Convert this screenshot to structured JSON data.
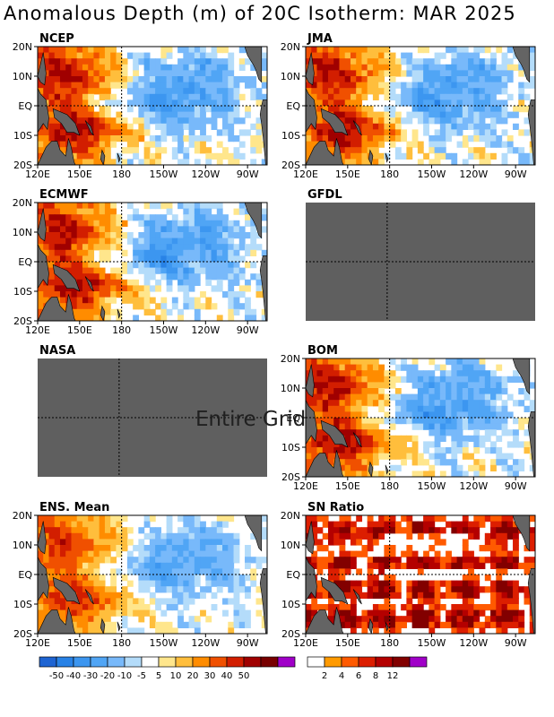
{
  "title": "Anomalous Depth (m) of 20C Isotherm: MAR 2025",
  "colors": {
    "land": "#646464",
    "missing": "#5f5f5f",
    "frame": "#000000",
    "grid": "#000000"
  },
  "chart_data": [
    {
      "type": "heatmap",
      "name": "NCEP",
      "status": "available",
      "xlabel_ticks": [
        "120E",
        "150E",
        "180",
        "150W",
        "120W",
        "90W"
      ],
      "ylabel_ticks": [
        "20N",
        "10N",
        "EQ",
        "10S",
        "20S"
      ],
      "pattern": "warm-west-cool-east"
    },
    {
      "type": "heatmap",
      "name": "JMA",
      "status": "available",
      "xlabel_ticks": [
        "120E",
        "150E",
        "180",
        "150W",
        "120W",
        "90W"
      ],
      "ylabel_ticks": [
        "20N",
        "10N",
        "EQ",
        "10S",
        "20S"
      ],
      "pattern": "warm-west-cool-east"
    },
    {
      "type": "heatmap",
      "name": "ECMWF",
      "status": "available",
      "xlabel_ticks": [
        "120E",
        "150E",
        "180",
        "150W",
        "120W",
        "90W"
      ],
      "ylabel_ticks": [
        "20N",
        "10N",
        "EQ",
        "10S",
        "20S"
      ],
      "pattern": "warm-west-cool-east"
    },
    {
      "type": "heatmap",
      "name": "GFDL",
      "status": "missing",
      "xlabel_ticks": [],
      "ylabel_ticks": []
    },
    {
      "type": "heatmap",
      "name": "NASA",
      "status": "missing",
      "message": "Entire Grid Undefined",
      "xlabel_ticks": [],
      "ylabel_ticks": []
    },
    {
      "type": "heatmap",
      "name": "BOM",
      "status": "available",
      "xlabel_ticks": [
        "120E",
        "150E",
        "180",
        "150W",
        "120W",
        "90W"
      ],
      "ylabel_ticks": [
        "20N",
        "10N",
        "EQ",
        "10S",
        "20S"
      ],
      "pattern": "warm-west-cool-east"
    },
    {
      "type": "heatmap",
      "name": "ENS. Mean",
      "status": "available",
      "xlabel_ticks": [
        "120E",
        "150E",
        "180",
        "150W",
        "120W",
        "90W"
      ],
      "ylabel_ticks": [
        "20N",
        "10N",
        "EQ",
        "10S",
        "20S"
      ],
      "pattern": "warm-west-cool-east"
    },
    {
      "type": "heatmap",
      "name": "SN Ratio",
      "status": "available",
      "xlabel_ticks": [
        "120E",
        "150E",
        "180",
        "150W",
        "120W",
        "90W"
      ],
      "ylabel_ticks": [
        "20N",
        "10N",
        "EQ",
        "10S",
        "20S"
      ],
      "pattern": "signal-to-noise"
    }
  ],
  "legend_anomaly": {
    "labels": [
      "-50",
      "-40",
      "-30",
      "-20",
      "-10",
      "-5",
      "5",
      "10",
      "20",
      "30",
      "40",
      "50"
    ],
    "colors": [
      "#1e64d2",
      "#2882e6",
      "#3c96f0",
      "#50a5f5",
      "#78b9fa",
      "#b4dcfa",
      "#ffffff",
      "#ffe68c",
      "#ffbe3c",
      "#ff8c00",
      "#f05000",
      "#d21e00",
      "#a00000",
      "#780000",
      "#a000c8"
    ]
  },
  "legend_sn": {
    "labels": [
      "2",
      "4",
      "6",
      "8",
      "12"
    ],
    "colors": [
      "#ffffff",
      "#ff9a00",
      "#ff5a00",
      "#dc1e00",
      "#b40000",
      "#820000",
      "#a000c8"
    ]
  }
}
